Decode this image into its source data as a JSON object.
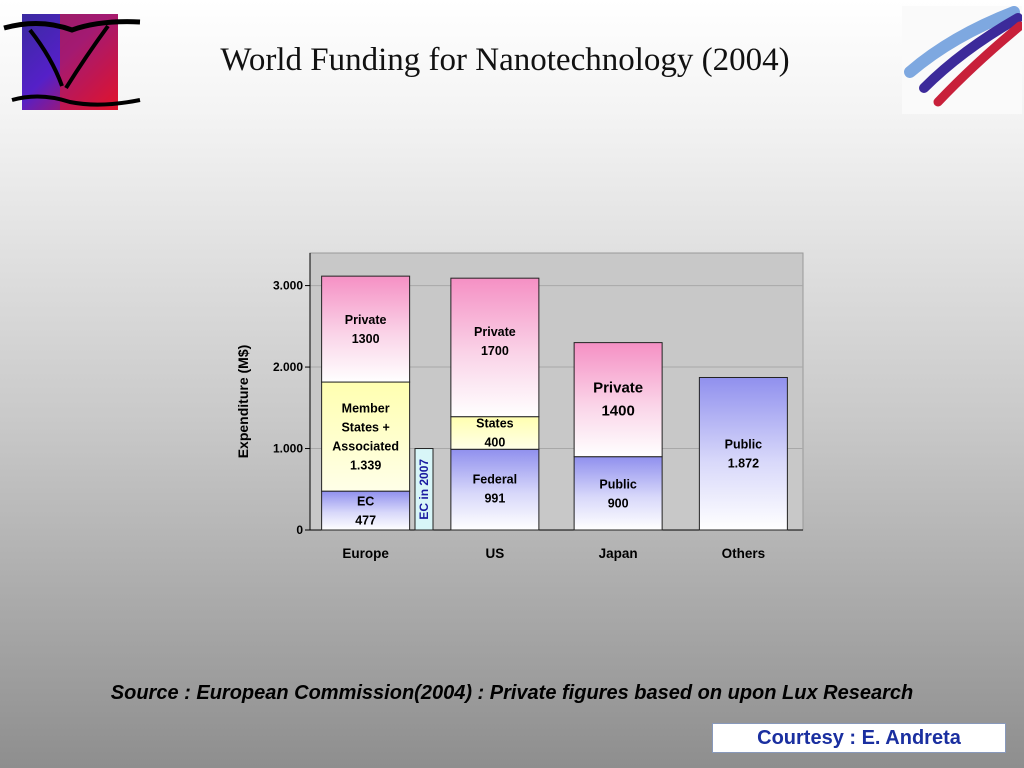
{
  "slide": {
    "title": "World Funding for Nanotechnology (2004)",
    "source": "Source : European Commission(2004) : Private figures based on upon Lux Research",
    "courtesy": "Courtesy : E. Andreta"
  },
  "chart_data": {
    "type": "bar",
    "stacked": true,
    "ylabel": "Expenditure (M$)",
    "ylim": [
      0,
      3000
    ],
    "yticks": [
      {
        "value": 0,
        "label": "0"
      },
      {
        "value": 1000,
        "label": "1.000"
      },
      {
        "value": 2000,
        "label": "2.000"
      },
      {
        "value": 3000,
        "label": "3.000"
      }
    ],
    "grid": true,
    "categories": [
      "Europe",
      "US",
      "Japan",
      "Others"
    ],
    "stacks": [
      {
        "category": "Europe",
        "segments": [
          {
            "value": 477,
            "lines": [
              "EC",
              "477"
            ],
            "color": "blue"
          },
          {
            "value": 1339,
            "lines": [
              "Member",
              "States +",
              "Associated",
              "1.339"
            ],
            "color": "yellow"
          },
          {
            "value": 1300,
            "lines": [
              "Private",
              "1300"
            ],
            "color": "pink"
          }
        ]
      },
      {
        "category": "US",
        "segments": [
          {
            "value": 991,
            "lines": [
              "Federal",
              "991"
            ],
            "color": "blue"
          },
          {
            "value": 400,
            "lines": [
              "States",
              "400"
            ],
            "color": "yellow"
          },
          {
            "value": 1700,
            "lines": [
              "Private",
              "1700"
            ],
            "color": "pink"
          }
        ]
      },
      {
        "category": "Japan",
        "segments": [
          {
            "value": 900,
            "lines": [
              "Public",
              "900"
            ],
            "color": "blue"
          },
          {
            "value": 1400,
            "lines": [
              "Private",
              "1400"
            ],
            "color": "pink"
          }
        ]
      },
      {
        "category": "Others",
        "segments": [
          {
            "value": 1872,
            "lines": [
              "Public",
              "1.872"
            ],
            "color": "blue"
          }
        ]
      }
    ],
    "annotation": {
      "category": "Europe",
      "text": "EC in 2007",
      "value": 1000
    }
  }
}
